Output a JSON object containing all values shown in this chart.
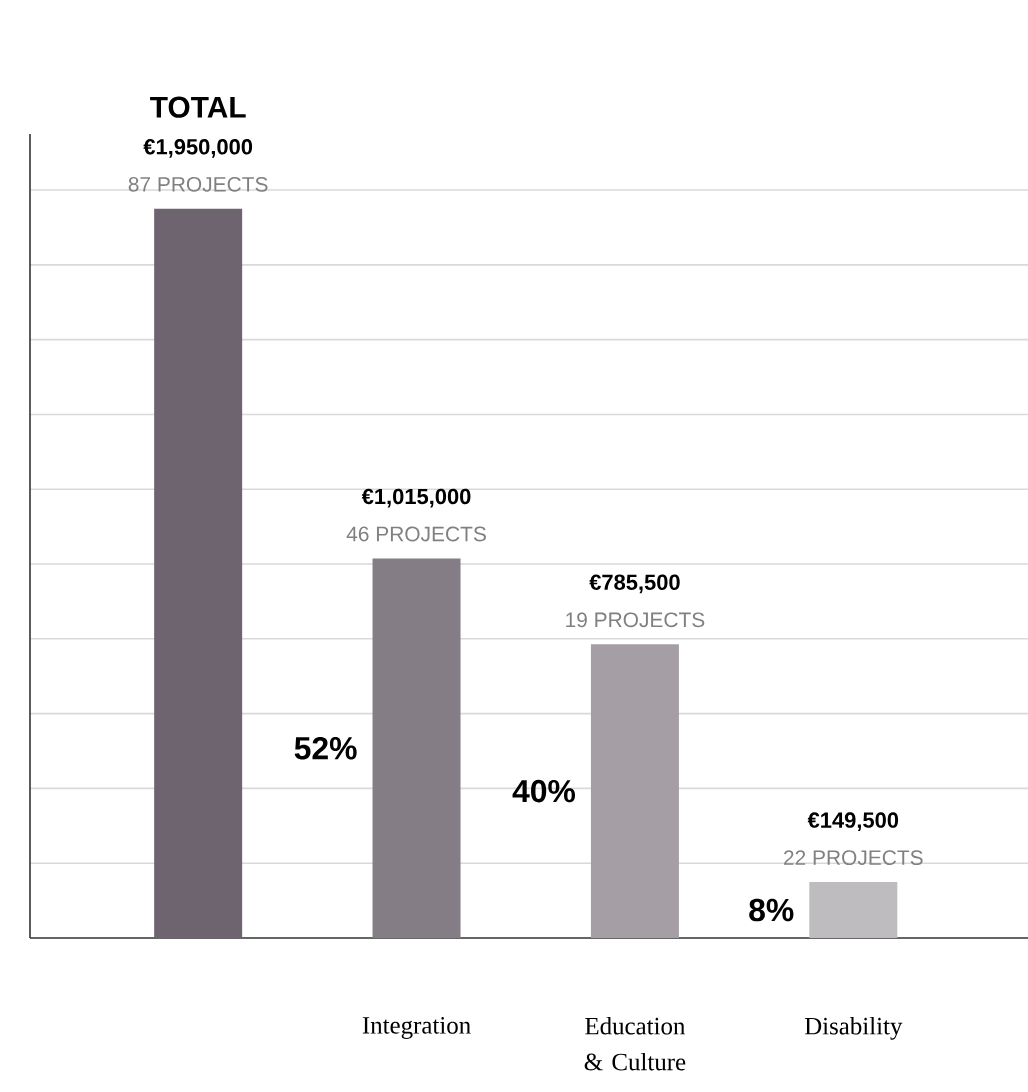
{
  "chart_data": {
    "type": "bar",
    "categories": [
      "TOTAL",
      "Integration",
      "Education & Culture",
      "Disability"
    ],
    "values": [
      1950000,
      1015000,
      785500,
      149500
    ],
    "colors": [
      "#6e6470",
      "#857d85",
      "#a59fa5",
      "#bfbcbf"
    ],
    "value_labels": [
      "€1,950,000",
      "€1,015,000",
      "€785,500",
      "€149,500"
    ],
    "annotations": [
      {
        "text": "87  PROJECTS",
        "x": "TOTAL",
        "y": 1950000
      },
      {
        "text": "46  PROJECTS",
        "x": "Integration",
        "y": 1015000
      },
      {
        "text": "19 PROJECTS",
        "x": "Education & Culture",
        "y": 785500
      },
      {
        "text": "22 PROJECTS",
        "x": "Disability",
        "y": 149500
      },
      "52%",
      "40%",
      "8%"
    ],
    "ylim": [
      0,
      2150000
    ],
    "yticks": [
      {
        "value": 200000,
        "label": null
      },
      {
        "value": 400000,
        "label": null
      },
      {
        "value": 600000,
        "label": null
      },
      {
        "value": 800000,
        "label": null
      },
      {
        "value": 1000000,
        "label": null
      },
      {
        "value": 1200000,
        "label": null
      },
      {
        "value": 1400000,
        "label": null
      },
      {
        "value": 1600000,
        "label": null
      },
      {
        "value": 1800000,
        "label": null
      },
      {
        "value": 2000000,
        "label": null
      }
    ],
    "grid": "y",
    "tick_labels": "x"
  }
}
